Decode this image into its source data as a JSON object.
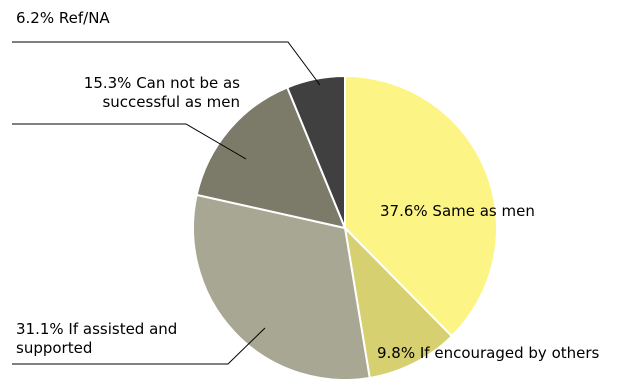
{
  "chart_data": {
    "type": "pie",
    "slices": [
      {
        "label": "Same as men",
        "value": 37.6,
        "display": "37.6% Same as men",
        "color": "#fcf485"
      },
      {
        "label": "If encouraged by others",
        "value": 9.8,
        "display": "9.8% If encouraged by others",
        "color": "#d6d070"
      },
      {
        "label": "If assisted and supported",
        "value": 31.1,
        "display": [
          "31.1% If assisted and",
          "supported"
        ],
        "color": "#a8a793"
      },
      {
        "label": "Can not be as successful as men",
        "value": 15.3,
        "display": [
          "15.3% Can not be as",
          "successful as men"
        ],
        "color": "#7c7a69"
      },
      {
        "label": "Ref/NA",
        "value": 6.2,
        "display": "6.2% Ref/NA",
        "color": "#404040"
      }
    ],
    "legend": "none"
  }
}
